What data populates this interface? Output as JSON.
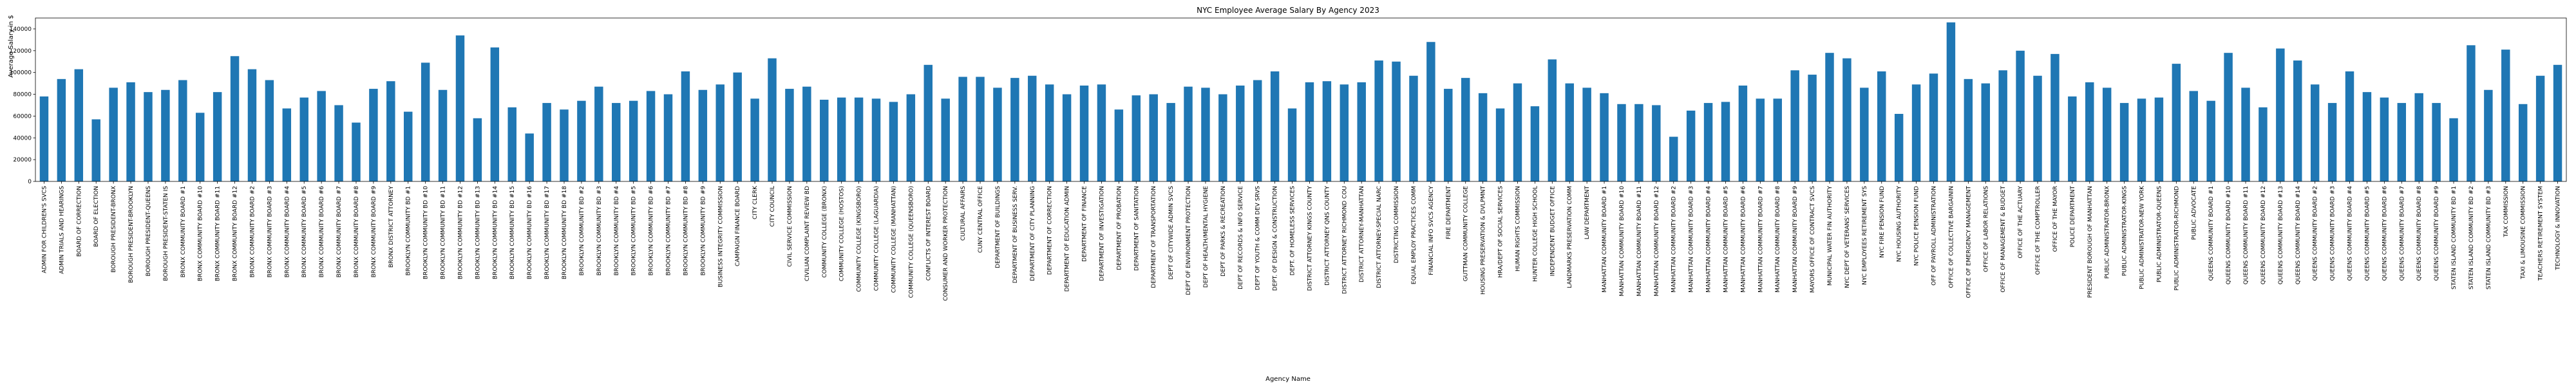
{
  "chart_data": {
    "type": "bar",
    "title": "NYC Employee Average Salary By Agency 2023",
    "xlabel": "Agency Name",
    "ylabel": "Average Salary in $",
    "ylim": [
      0,
      150000
    ],
    "yticks": [
      0,
      20000,
      40000,
      60000,
      80000,
      100000,
      120000,
      140000
    ],
    "grid": false,
    "legend": "none",
    "bar_color": "#1f77b4",
    "categories": [
      "ADMIN FOR CHILDREN'S SVCS",
      "ADMIN TRIALS AND HEARINGS",
      "BOARD OF CORRECTION",
      "BOARD OF ELECTION",
      "BOROUGH PRESIDENT-BRONX",
      "BOROUGH PRESIDENT-BROOKLYN",
      "BOROUGH PRESIDENT-QUEENS",
      "BOROUGH PRESIDENT-STATEN IS",
      "BRONX COMMUNITY BOARD #1",
      "BRONX COMMUNITY BOARD #10",
      "BRONX COMMUNITY BOARD #11",
      "BRONX COMMUNITY BOARD #12",
      "BRONX COMMUNITY BOARD #2",
      "BRONX COMMUNITY BOARD #3",
      "BRONX COMMUNITY BOARD #4",
      "BRONX COMMUNITY BOARD #5",
      "BRONX COMMUNITY BOARD #6",
      "BRONX COMMUNITY BOARD #7",
      "BRONX COMMUNITY BOARD #8",
      "BRONX COMMUNITY BOARD #9",
      "BRONX DISTRICT ATTORNEY",
      "BROOKLYN COMMUNITY BD #1",
      "BROOKLYN COMMUNITY BD #10",
      "BROOKLYN COMMUNITY BD #11",
      "BROOKLYN COMMUNITY BD #12",
      "BROOKLYN COMMUNITY BD #13",
      "BROOKLYN COMMUNITY BD #14",
      "BROOKLYN COMMUNITY BD #15",
      "BROOKLYN COMMUNITY BD #16",
      "BROOKLYN COMMUNITY BD #17",
      "BROOKLYN COMMUNITY BD #18",
      "BROOKLYN COMMUNITY BD #2",
      "BROOKLYN COMMUNITY BD #3",
      "BROOKLYN COMMUNITY BD #4",
      "BROOKLYN COMMUNITY BD #5",
      "BROOKLYN COMMUNITY BD #6",
      "BROOKLYN COMMUNITY BD #7",
      "BROOKLYN COMMUNITY BD #8",
      "BROOKLYN COMMUNITY BD #9",
      "BUSINESS INTEGRITY COMMISSION",
      "CAMPAIGN FINANCE BOARD",
      "CITY CLERK",
      "CITY COUNCIL",
      "CIVIL SERVICE COMMISSION",
      "CIVILIAN COMPLAINT REVIEW BD",
      "COMMUNITY COLLEGE (BRONX)",
      "COMMUNITY COLLEGE (HOSTOS)",
      "COMMUNITY COLLEGE (KINGSBORO)",
      "COMMUNITY COLLEGE (LAGUARDIA)",
      "COMMUNITY COLLEGE (MANHATTAN)",
      "COMMUNITY COLLEGE (QUEENSBORO)",
      "CONFLICTS OF INTEREST BOARD",
      "CONSUMER AND WORKER PROTECTION",
      "CULTURAL AFFAIRS",
      "CUNY CENTRAL OFFICE",
      "DEPARTMENT OF BUILDINGS",
      "DEPARTMENT OF BUSINESS SERV.",
      "DEPARTMENT OF CITY PLANNING",
      "DEPARTMENT OF CORRECTION",
      "DEPARTMENT OF EDUCATION ADMIN",
      "DEPARTMENT OF FINANCE",
      "DEPARTMENT OF INVESTIGATION",
      "DEPARTMENT OF PROBATION",
      "DEPARTMENT OF SANITATION",
      "DEPARTMENT OF TRANSPORTATION",
      "DEPT OF CITYWIDE ADMIN SVCS",
      "DEPT OF ENVIRONMENT PROTECTION",
      "DEPT OF HEALTH/MENTAL HYGIENE",
      "DEPT OF PARKS & RECREATION",
      "DEPT OF RECORDS & INFO SERVICE",
      "DEPT OF YOUTH & COMM DEV SRVS",
      "DEPT. OF DESIGN & CONSTRUCTION",
      "DEPT. OF HOMELESS SERVICES",
      "DISTRICT ATTORNEY KINGS COUNTY",
      "DISTRICT ATTORNEY QNS COUNTY",
      "DISTRICT ATTORNEY RICHMOND COU",
      "DISTRICT ATTORNEY-MANHATTAN",
      "DISTRICT ATTORNEY-SPECIAL NARC",
      "DISTRICTING COMMISSION",
      "EQUAL EMPLOY PRACTICES COMM",
      "FINANCIAL INFO SVCS AGENCY",
      "FIRE DEPARTMENT",
      "GUTTMAN COMMUNITY COLLEGE",
      "HOUSING PRESERVATION & DVLPMNT",
      "HRA/DEPT OF SOCIAL SERVICES",
      "HUMAN RIGHTS COMMISSION",
      "HUNTER COLLEGE HIGH SCHOOL",
      "INDEPENDENT BUDGET OFFICE",
      "LANDMARKS PRESERVATION COMM",
      "LAW DEPARTMENT",
      "MANHATTAN COMMUNITY BOARD #1",
      "MANHATTAN COMMUNITY BOARD #10",
      "MANHATTAN COMMUNITY BOARD #11",
      "MANHATTAN COMMUNITY BOARD #12",
      "MANHATTAN COMMUNITY BOARD #2",
      "MANHATTAN COMMUNITY BOARD #3",
      "MANHATTAN COMMUNITY BOARD #4",
      "MANHATTAN COMMUNITY BOARD #5",
      "MANHATTAN COMMUNITY BOARD #6",
      "MANHATTAN COMMUNITY BOARD #7",
      "MANHATTAN COMMUNITY BOARD #8",
      "MANHATTAN COMMUNITY BOARD #9",
      "MAYORS OFFICE OF CONTRACT SVCS",
      "MUNICIPAL WATER FIN AUTHORITY",
      "NYC DEPT OF VETERANS' SERVICES",
      "NYC EMPLOYEES RETIREMENT SYS",
      "NYC FIRE PENSION FUND",
      "NYC HOUSING AUTHORITY",
      "NYC POLICE PENSION FUND",
      "OFF OF PAYROLL ADMINISTRATION",
      "OFFICE OF COLLECTIVE BARGAININ",
      "OFFICE OF EMERGENCY MANAGEMENT",
      "OFFICE OF LABOR RELATIONS",
      "OFFICE OF MANAGEMENT & BUDGET",
      "OFFICE OF THE ACTUARY",
      "OFFICE OF THE COMPTROLLER",
      "OFFICE OF THE MAYOR",
      "POLICE DEPARTMENT",
      "PRESIDENT BOROUGH OF MANHATTAN",
      "PUBLIC ADMINISTRATOR-BRONX",
      "PUBLIC ADMINISTRATOR-KINGS",
      "PUBLIC ADMINISTRATOR-NEW YORK",
      "PUBLIC ADMINISTRATOR-QUEENS",
      "PUBLIC ADMINISTRATOR-RICHMOND",
      "PUBLIC ADVOCATE",
      "QUEENS COMMUNITY BOARD #1",
      "QUEENS COMMUNITY BOARD #10",
      "QUEENS COMMUNITY BOARD #11",
      "QUEENS COMMUNITY BOARD #12",
      "QUEENS COMMUNITY BOARD #13",
      "QUEENS COMMUNITY BOARD #14",
      "QUEENS COMMUNITY BOARD #2",
      "QUEENS COMMUNITY BOARD #3",
      "QUEENS COMMUNITY BOARD #4",
      "QUEENS COMMUNITY BOARD #5",
      "QUEENS COMMUNITY BOARD #6",
      "QUEENS COMMUNITY BOARD #7",
      "QUEENS COMMUNITY BOARD #8",
      "QUEENS COMMUNITY BOARD #9",
      "STATEN ISLAND COMMUNITY BD #1",
      "STATEN ISLAND COMMUNITY BD #2",
      "STATEN ISLAND COMMUNITY BD #3",
      "TAX COMMISSION",
      "TAXI & LIMOUSINE COMMISSION",
      "TEACHERS RETIREMENT SYSTEM",
      "TECHNOLOGY & INNOVATION"
    ],
    "values": [
      78000,
      94000,
      103000,
      57000,
      86000,
      91000,
      82000,
      84000,
      93000,
      63000,
      82000,
      115000,
      103000,
      93000,
      67000,
      77000,
      83000,
      70000,
      54000,
      85000,
      92000,
      64000,
      109000,
      84000,
      134000,
      58000,
      123000,
      68000,
      44000,
      72000,
      66000,
      74000,
      87000,
      72000,
      74000,
      83000,
      80000,
      101000,
      84000,
      89000,
      100000,
      76000,
      113000,
      85000,
      87000,
      75000,
      77000,
      77000,
      76000,
      73000,
      80000,
      107000,
      76000,
      96000,
      96000,
      86000,
      95000,
      97000,
      89000,
      80000,
      88000,
      89000,
      66000,
      79000,
      80000,
      72000,
      87000,
      86000,
      80000,
      88000,
      93000,
      101000,
      67000,
      91000,
      92000,
      89000,
      91000,
      111000,
      110000,
      97000,
      128000,
      85000,
      95000,
      81000,
      67000,
      90000,
      69000,
      112000,
      90000,
      86000,
      81000,
      71000,
      71000,
      70000,
      41000,
      65000,
      72000,
      73000,
      88000,
      76000,
      76000,
      102000,
      98000,
      118000,
      113000,
      86000,
      101000,
      62000,
      89000,
      99000,
      146000,
      94000,
      90000,
      102000,
      120000,
      97000,
      117000,
      78000,
      91000,
      86000,
      72000,
      76000,
      77000,
      108000,
      83000,
      74000,
      118000,
      86000,
      68000,
      122000,
      111000,
      89000,
      72000,
      101000,
      82000,
      77000,
      72000,
      81000,
      72000,
      58000,
      125000,
      84000,
      121000,
      71000,
      97000,
      107000
    ]
  }
}
